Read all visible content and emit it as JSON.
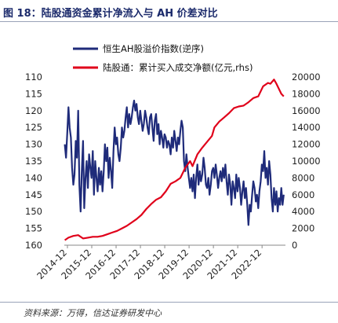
{
  "title": "图 18：陆股通资金累计净流入与 AH 价差对比",
  "source": "资料来源：万得，信达证券研发中心",
  "chart_data": {
    "type": "line",
    "colors": {
      "ah": "#1f2b7a",
      "flow": "#e0001a"
    },
    "legend_placement": "top-left",
    "grid": false,
    "x_ticks": [
      "2014-12",
      "2015-12",
      "2016-12",
      "2017-12",
      "2018-12",
      "2019-12",
      "2020-12",
      "2021-12",
      "2022-12"
    ],
    "x_range": [
      2014.83,
      2023.92
    ],
    "y_left": {
      "ticks": [
        "110",
        "115",
        "120",
        "125",
        "130",
        "135",
        "140",
        "145",
        "150",
        "155",
        "160"
      ],
      "range": [
        110,
        160
      ],
      "inverted": true
    },
    "y_right": {
      "ticks": [
        "0",
        "2000",
        "4000",
        "6000",
        "8000",
        "10000",
        "12000",
        "14000",
        "16000",
        "18000",
        "20000"
      ],
      "range": [
        0,
        20000
      ]
    },
    "series": [
      {
        "name": "恒生AH股溢价指数(逆序)",
        "axis": "left",
        "t": [
          2014.85,
          2014.9,
          2014.95,
          2015.0,
          2015.05,
          2015.1,
          2015.15,
          2015.2,
          2015.25,
          2015.3,
          2015.35,
          2015.4,
          2015.45,
          2015.5,
          2015.55,
          2015.6,
          2015.65,
          2015.7,
          2015.75,
          2015.8,
          2015.85,
          2015.9,
          2015.95,
          2016.0,
          2016.05,
          2016.1,
          2016.15,
          2016.2,
          2016.25,
          2016.3,
          2016.35,
          2016.4,
          2016.45,
          2016.5,
          2016.55,
          2016.6,
          2016.65,
          2016.7,
          2016.75,
          2016.8,
          2016.85,
          2016.9,
          2016.95,
          2017.0,
          2017.05,
          2017.1,
          2017.15,
          2017.2,
          2017.25,
          2017.3,
          2017.35,
          2017.4,
          2017.45,
          2017.5,
          2017.55,
          2017.6,
          2017.65,
          2017.7,
          2017.75,
          2017.8,
          2017.85,
          2017.9,
          2017.95,
          2018.0,
          2018.05,
          2018.1,
          2018.15,
          2018.2,
          2018.25,
          2018.3,
          2018.35,
          2018.4,
          2018.45,
          2018.5,
          2018.55,
          2018.6,
          2018.65,
          2018.7,
          2018.75,
          2018.8,
          2018.85,
          2018.9,
          2018.95,
          2019.0,
          2019.05,
          2019.1,
          2019.15,
          2019.2,
          2019.25,
          2019.3,
          2019.35,
          2019.4,
          2019.45,
          2019.5,
          2019.55,
          2019.6,
          2019.65,
          2019.7,
          2019.75,
          2019.8,
          2019.85,
          2019.9,
          2019.95,
          2020.0,
          2020.05,
          2020.1,
          2020.15,
          2020.2,
          2020.25,
          2020.3,
          2020.35,
          2020.4,
          2020.45,
          2020.5,
          2020.55,
          2020.6,
          2020.65,
          2020.7,
          2020.75,
          2020.8,
          2020.85,
          2020.9,
          2020.95,
          2021.0,
          2021.05,
          2021.1,
          2021.15,
          2021.2,
          2021.25,
          2021.3,
          2021.35,
          2021.4,
          2021.45,
          2021.5,
          2021.55,
          2021.6,
          2021.65,
          2021.7,
          2021.75,
          2021.8,
          2021.85,
          2021.9,
          2021.95,
          2022.0,
          2022.05,
          2022.1,
          2022.15,
          2022.2,
          2022.25,
          2022.3,
          2022.35,
          2022.4,
          2022.45,
          2022.5,
          2022.55,
          2022.6,
          2022.65,
          2022.7,
          2022.75,
          2022.8,
          2022.85,
          2022.9,
          2022.95,
          2023.0,
          2023.05,
          2023.1,
          2023.15,
          2023.2,
          2023.25,
          2023.3,
          2023.35,
          2023.4,
          2023.45,
          2023.5,
          2023.55,
          2023.6,
          2023.65,
          2023.7,
          2023.75,
          2023.8,
          2023.85
        ],
        "values": [
          130,
          134,
          127,
          119,
          125,
          128,
          137,
          142,
          139,
          129,
          134,
          120,
          142,
          150,
          138,
          129,
          149,
          140,
          135,
          143,
          133,
          137,
          140,
          132,
          145,
          135,
          140,
          144,
          137,
          142,
          138,
          144,
          138,
          130,
          135,
          131,
          140,
          134,
          138,
          143,
          132,
          125,
          130,
          128,
          133,
          135,
          131,
          125,
          128,
          126,
          122,
          119,
          125,
          121,
          124,
          122,
          119,
          117,
          120,
          118,
          122,
          124,
          120,
          123,
          126,
          124,
          120,
          122,
          125,
          127,
          122,
          121,
          125,
          129,
          123,
          121,
          127,
          124,
          130,
          126,
          128,
          131,
          127,
          128,
          131,
          129,
          130,
          133,
          128,
          131,
          126,
          129,
          132,
          128,
          130,
          126,
          123,
          125,
          135,
          138,
          133,
          137,
          140,
          143,
          140,
          144,
          139,
          146,
          140,
          136,
          142,
          138,
          141,
          139,
          134,
          137,
          142,
          143,
          140,
          145,
          142,
          138,
          137,
          140,
          136,
          139,
          143,
          140,
          138,
          141,
          137,
          140,
          136,
          141,
          145,
          139,
          142,
          148,
          141,
          143,
          146,
          139,
          144,
          140,
          143,
          148,
          144,
          141,
          146,
          143,
          148,
          154,
          148,
          150,
          145,
          141,
          143,
          147,
          145,
          149,
          144,
          141,
          136,
          138,
          132,
          140,
          137,
          142,
          135,
          139,
          146,
          150,
          143,
          148,
          144,
          150,
          146,
          148,
          143,
          148,
          145
        ]
      },
      {
        "name": "陆股通：累计买入成交净额(亿元,rhs)",
        "axis": "right",
        "t": [
          2014.85,
          2015.0,
          2015.2,
          2015.4,
          2015.6,
          2015.8,
          2016.0,
          2016.2,
          2016.4,
          2016.6,
          2016.8,
          2017.0,
          2017.2,
          2017.4,
          2017.6,
          2017.8,
          2018.0,
          2018.2,
          2018.4,
          2018.6,
          2018.8,
          2019.0,
          2019.2,
          2019.4,
          2019.6,
          2019.8,
          2020.0,
          2020.1,
          2020.2,
          2020.3,
          2020.5,
          2020.7,
          2020.9,
          2021.0,
          2021.2,
          2021.4,
          2021.6,
          2021.8,
          2022.0,
          2022.2,
          2022.4,
          2022.6,
          2022.8,
          2023.0,
          2023.2,
          2023.3,
          2023.45,
          2023.55,
          2023.65,
          2023.75,
          2023.85
        ],
        "values": [
          600,
          900,
          1100,
          1200,
          800,
          900,
          1000,
          1000,
          1100,
          1300,
          1500,
          1700,
          2000,
          2300,
          2700,
          3100,
          3600,
          4300,
          4900,
          5400,
          5700,
          6400,
          7300,
          7600,
          8000,
          9200,
          10000,
          9400,
          10100,
          10800,
          11600,
          12300,
          13000,
          14000,
          14700,
          15200,
          15700,
          16300,
          16500,
          16600,
          17000,
          17500,
          17700,
          18900,
          19300,
          19200,
          19700,
          19200,
          18600,
          18000,
          17700
        ]
      }
    ]
  }
}
